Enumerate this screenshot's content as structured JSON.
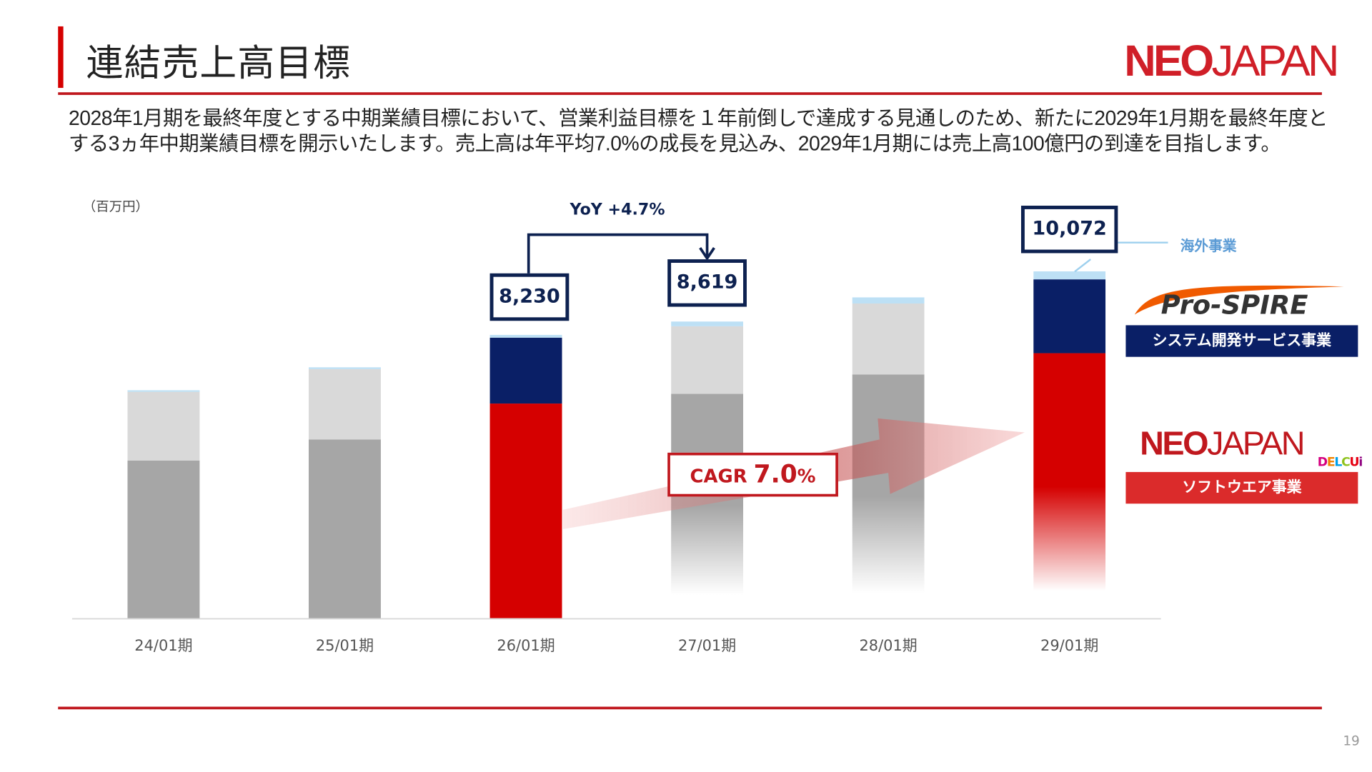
{
  "header": {
    "title": "連結売上高目標",
    "logo": "NEOJAPAN",
    "description": "2028年1月期を最終年度とする中期業績目標において、営業利益目標を１年前倒しで達成する見通しのため、新たに2029年1月期を最終年度とする3ヵ年中期業績目標を開示いたします。売上高は年平均7.0%の成長を見込み、2029年1月期には売上高100億円の到達を目指します。"
  },
  "chart_data": {
    "type": "bar",
    "stacked": true,
    "unit_label": "（百万円）",
    "categories": [
      "24/01期",
      "25/01期",
      "26/01期",
      "27/01期",
      "28/01期",
      "29/01期"
    ],
    "series": [
      {
        "name": "ソフトウエア事業",
        "values": [
          4590,
          5200,
          6240,
          6520,
          7080,
          7700
        ]
      },
      {
        "name": "システム開発サービス事業",
        "values": [
          1990,
          2040,
          1910,
          1960,
          2060,
          2140
        ]
      },
      {
        "name": "海外事業",
        "values": [
          45,
          50,
          80,
          139,
          180,
          232
        ]
      }
    ],
    "ylim": [
      0,
      12000
    ],
    "colors": {
      "actual_software": "#a6a6a6",
      "actual_system": "#d9d9d9",
      "forecast_software": "#d50000",
      "forecast_system": "#0a1f66",
      "overseas": "#bde0f5"
    },
    "highlighted": [
      "26/01期",
      "29/01期"
    ],
    "totals_labels": [
      {
        "category": "26/01期",
        "text": "8,230"
      },
      {
        "category": "27/01期",
        "text": "8,619"
      },
      {
        "category": "29/01期",
        "text": "10,072"
      }
    ],
    "annotations": {
      "yoy": "YoY +4.7%",
      "yoy_prefix": "YoY +",
      "yoy_value": "4.7",
      "yoy_pct": "%",
      "cagr_prefix": "CAGR ",
      "cagr_value": "7.0",
      "cagr_pct": "%"
    },
    "legend": {
      "overseas": "海外事業",
      "prospire": "Pro-SPIRE",
      "system": "システム開発サービス事業",
      "neojapan": "NEOJAPAN",
      "delcui": "DELCUi",
      "software": "ソフトウエア事業"
    }
  },
  "page_number": "19"
}
